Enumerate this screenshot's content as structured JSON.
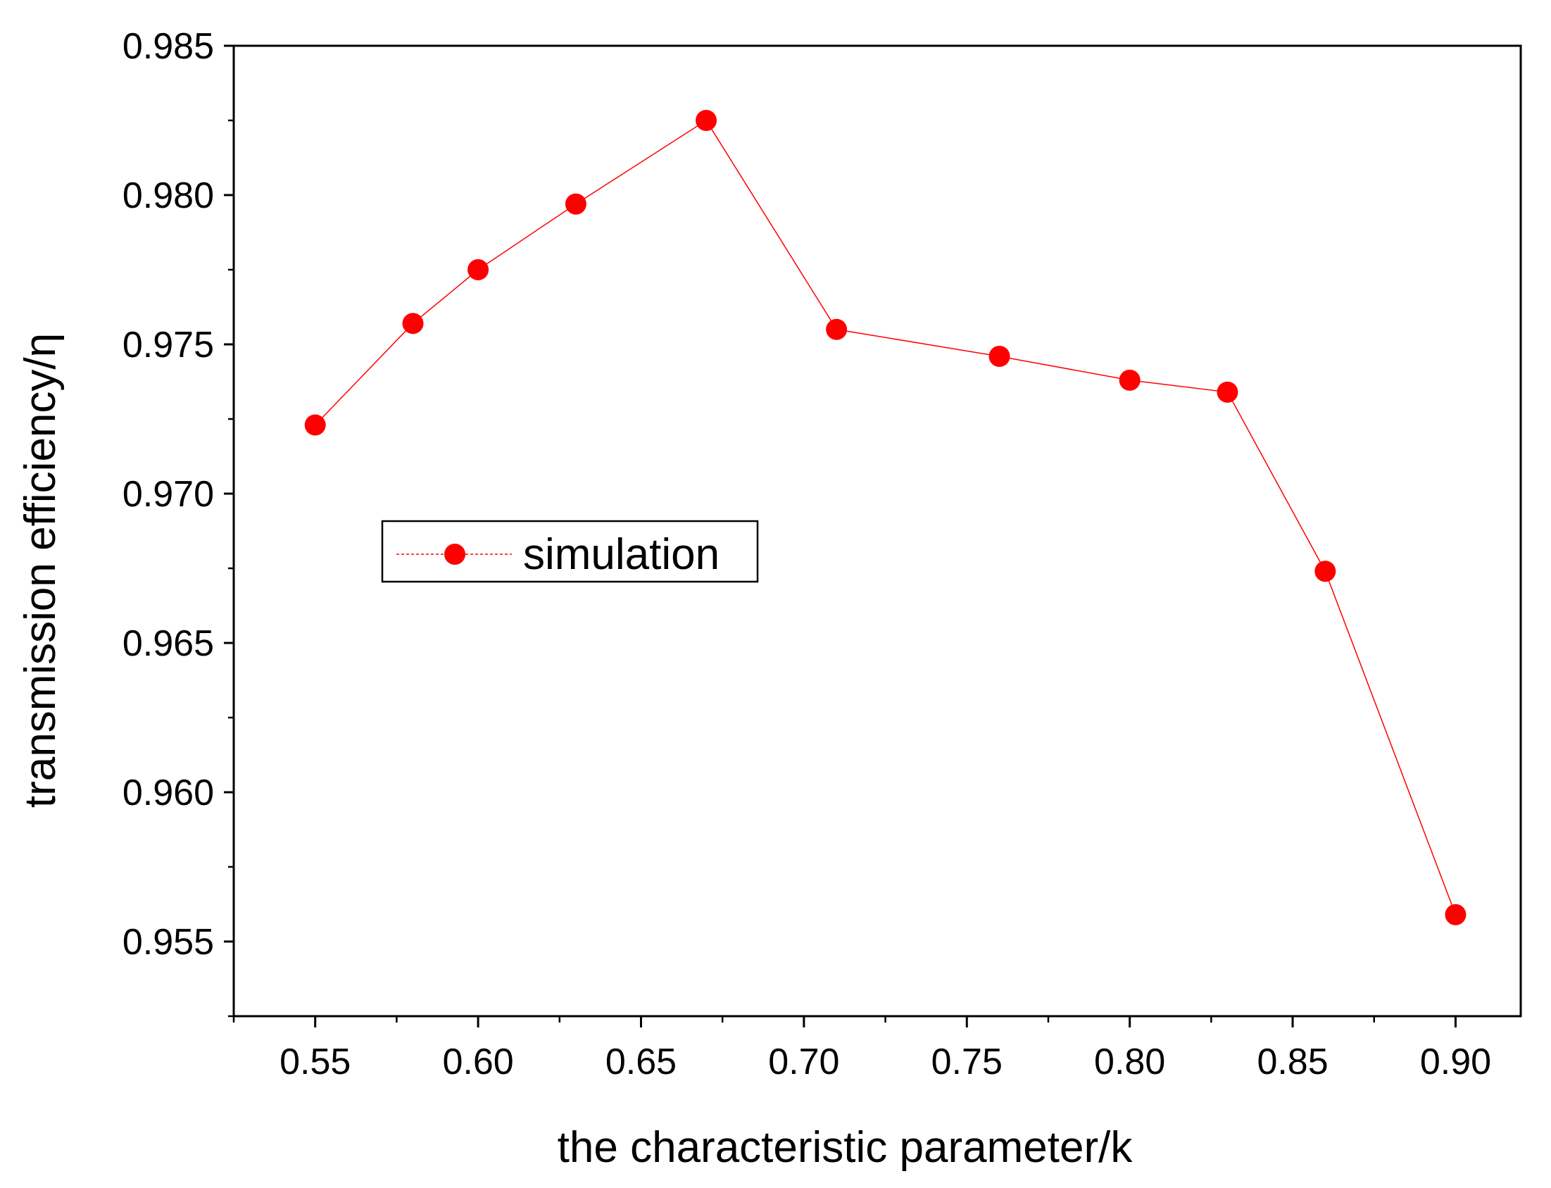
{
  "chart_data": {
    "type": "line",
    "title": "",
    "xlabel": "the characteristic parameter/k",
    "ylabel": "transmission efficiency/η",
    "xlim": [
      0.525,
      0.92
    ],
    "ylim": [
      0.9525,
      0.985
    ],
    "x_ticks": [
      0.55,
      0.6,
      0.65,
      0.7,
      0.75,
      0.8,
      0.85,
      0.9
    ],
    "x_tick_labels": [
      "0.55",
      "0.60",
      "0.65",
      "0.70",
      "0.75",
      "0.80",
      "0.85",
      "0.90"
    ],
    "y_ticks": [
      0.955,
      0.96,
      0.965,
      0.97,
      0.975,
      0.98,
      0.985
    ],
    "y_tick_labels": [
      "0.955",
      "0.960",
      "0.965",
      "0.970",
      "0.975",
      "0.980",
      "0.985"
    ],
    "grid": false,
    "legend_position": "middle-left",
    "series": [
      {
        "name": "simulation",
        "color": "#ff0000",
        "x": [
          0.55,
          0.58,
          0.6,
          0.63,
          0.67,
          0.71,
          0.76,
          0.8,
          0.83,
          0.86,
          0.9
        ],
        "y": [
          0.9723,
          0.9757,
          0.9775,
          0.9797,
          0.9825,
          0.9755,
          0.9746,
          0.9738,
          0.9734,
          0.9674,
          0.9559
        ]
      }
    ]
  }
}
